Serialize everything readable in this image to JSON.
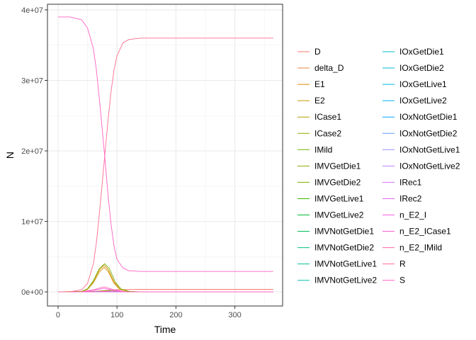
{
  "chart_data": {
    "type": "line",
    "xlabel": "Time",
    "ylabel": "N",
    "xlim": [
      -18,
      381
    ],
    "ylim": [
      -2000000,
      40800000
    ],
    "x_ticks": [
      0,
      100,
      200,
      300
    ],
    "x_tick_labels": [
      "0",
      "100",
      "200",
      "300"
    ],
    "y_ticks": [
      0,
      10000000,
      20000000,
      30000000,
      40000000
    ],
    "y_tick_labels": [
      "0e+00",
      "1e+07",
      "2e+07",
      "3e+07",
      "4e+07"
    ],
    "grid": true,
    "legend_position": "right",
    "legend_columns": 2,
    "series": [
      {
        "name": "D",
        "color": "#F8766D",
        "x": [
          0,
          60,
          80,
          100,
          140,
          365
        ],
        "y": [
          0,
          60000,
          200000,
          320000,
          360000,
          360000
        ]
      },
      {
        "name": "delta_D",
        "color": "#EE8042",
        "x": [
          0,
          50,
          70,
          80,
          90,
          110,
          365
        ],
        "y": [
          0,
          0,
          3000,
          5000,
          3000,
          0,
          0
        ]
      },
      {
        "name": "E1",
        "color": "#DF8B00",
        "x": [
          0,
          40,
          50,
          60,
          70,
          78,
          85,
          95,
          105,
          120,
          140,
          365
        ],
        "y": [
          0,
          60000,
          400000,
          1500000,
          3100000,
          3800000,
          3200000,
          1400000,
          400000,
          60000,
          0,
          0
        ]
      },
      {
        "name": "E2",
        "color": "#CB9600",
        "x": [
          0,
          40,
          50,
          60,
          70,
          78,
          85,
          95,
          105,
          120,
          140,
          365
        ],
        "y": [
          0,
          50000,
          350000,
          1300000,
          2800000,
          3500000,
          2900000,
          1200000,
          350000,
          50000,
          0,
          0
        ]
      },
      {
        "name": "ICase1",
        "color": "#B3A000",
        "x": [
          0,
          50,
          65,
          80,
          95,
          110,
          130,
          365
        ],
        "y": [
          0,
          20000,
          80000,
          180000,
          120000,
          40000,
          0,
          0
        ]
      },
      {
        "name": "ICase2",
        "color": "#96A900",
        "x": [
          0,
          50,
          65,
          82,
          97,
          112,
          132,
          365
        ],
        "y": [
          0,
          15000,
          60000,
          150000,
          100000,
          30000,
          0,
          0
        ]
      },
      {
        "name": "IMild",
        "color": "#6FB000",
        "x": [
          0,
          40,
          50,
          60,
          70,
          79,
          87,
          97,
          107,
          122,
          140,
          365
        ],
        "y": [
          0,
          70000,
          450000,
          1600000,
          3300000,
          4000000,
          3300000,
          1400000,
          400000,
          60000,
          0,
          0
        ]
      },
      {
        "name": "IMVGetDie1",
        "color": "#8AAB00",
        "x": [
          0,
          60,
          85,
          110,
          365
        ],
        "y": [
          0,
          5000,
          30000,
          5000,
          0
        ]
      },
      {
        "name": "IMVGetDie2",
        "color": "#7CAE00",
        "x": [
          0,
          60,
          87,
          112,
          365
        ],
        "y": [
          0,
          4000,
          25000,
          4000,
          0
        ]
      },
      {
        "name": "IMVGetLive1",
        "color": "#3DB700",
        "x": [
          0,
          60,
          85,
          110,
          365
        ],
        "y": [
          0,
          6000,
          35000,
          6000,
          0
        ]
      },
      {
        "name": "IMVGetLive2",
        "color": "#00BA38",
        "x": [
          0,
          60,
          87,
          112,
          365
        ],
        "y": [
          0,
          5000,
          28000,
          5000,
          0
        ]
      },
      {
        "name": "IMVNotGetDie1",
        "color": "#00BD5C",
        "x": [
          0,
          60,
          85,
          110,
          365
        ],
        "y": [
          0,
          2000,
          12000,
          2000,
          0
        ]
      },
      {
        "name": "IMVNotGetDie2",
        "color": "#00BF7A",
        "x": [
          0,
          60,
          87,
          112,
          365
        ],
        "y": [
          0,
          2000,
          10000,
          2000,
          0
        ]
      },
      {
        "name": "IMVNotGetLive1",
        "color": "#00C094",
        "x": [
          0,
          60,
          85,
          110,
          365
        ],
        "y": [
          0,
          1000,
          8000,
          1000,
          0
        ]
      },
      {
        "name": "IMVNotGetLive2",
        "color": "#00C0AB",
        "x": [
          0,
          60,
          87,
          112,
          365
        ],
        "y": [
          0,
          1000,
          6000,
          1000,
          0
        ]
      },
      {
        "name": "IOxGetDie1",
        "color": "#00BFC0",
        "x": [
          0,
          60,
          84,
          108,
          365
        ],
        "y": [
          0,
          8000,
          45000,
          8000,
          0
        ]
      },
      {
        "name": "IOxGetDie2",
        "color": "#00BCD8",
        "x": [
          0,
          60,
          86,
          110,
          365
        ],
        "y": [
          0,
          7000,
          40000,
          7000,
          0
        ]
      },
      {
        "name": "IOxGetLive1",
        "color": "#00B8E7",
        "x": [
          0,
          60,
          84,
          108,
          365
        ],
        "y": [
          0,
          15000,
          90000,
          15000,
          0
        ]
      },
      {
        "name": "IOxGetLive2",
        "color": "#00B0F6",
        "x": [
          0,
          60,
          86,
          110,
          365
        ],
        "y": [
          0,
          12000,
          75000,
          12000,
          0
        ]
      },
      {
        "name": "IOxNotGetDie1",
        "color": "#00A9FF",
        "x": [
          0,
          60,
          84,
          108,
          365
        ],
        "y": [
          0,
          2000,
          10000,
          2000,
          0
        ]
      },
      {
        "name": "IOxNotGetDie2",
        "color": "#619CFF",
        "x": [
          0,
          60,
          86,
          110,
          365
        ],
        "y": [
          0,
          2000,
          9000,
          2000,
          0
        ]
      },
      {
        "name": "IOxNotGetLive1",
        "color": "#9590FF",
        "x": [
          0,
          60,
          84,
          108,
          365
        ],
        "y": [
          0,
          3000,
          15000,
          3000,
          0
        ]
      },
      {
        "name": "IOxNotGetLive2",
        "color": "#B983FF",
        "x": [
          0,
          60,
          86,
          110,
          365
        ],
        "y": [
          0,
          2000,
          12000,
          2000,
          0
        ]
      },
      {
        "name": "IRec1",
        "color": "#D376FF",
        "x": [
          0,
          55,
          80,
          105,
          130,
          365
        ],
        "y": [
          0,
          5000,
          40000,
          15000,
          0,
          0
        ]
      },
      {
        "name": "IRec2",
        "color": "#E76BF3",
        "x": [
          0,
          55,
          82,
          107,
          132,
          365
        ],
        "y": [
          0,
          4000,
          35000,
          12000,
          0,
          0
        ]
      },
      {
        "name": "n_E2_I",
        "color": "#F564E3",
        "x": [
          0,
          40,
          60,
          78,
          95,
          115,
          140,
          365
        ],
        "y": [
          0,
          20000,
          200000,
          500000,
          200000,
          20000,
          0,
          0
        ]
      },
      {
        "name": "n_E2_ICase1",
        "color": "#FD61D1",
        "x": [
          0,
          50,
          70,
          80,
          92,
          110,
          365
        ],
        "y": [
          0,
          5000,
          40000,
          80000,
          40000,
          5000,
          0
        ]
      },
      {
        "name": "n_E2_IMild",
        "color": "#FF64B0",
        "x": [
          0,
          40,
          60,
          78,
          95,
          115,
          140,
          365
        ],
        "y": [
          0,
          30000,
          300000,
          700000,
          300000,
          30000,
          0,
          0
        ]
      },
      {
        "name": "R",
        "color": "#FF6C91",
        "x": [
          0,
          20,
          40,
          50,
          60,
          65,
          70,
          75,
          80,
          85,
          90,
          95,
          100,
          110,
          120,
          140,
          200,
          365
        ],
        "y": [
          0,
          10000,
          300000,
          1200000,
          4000000,
          7000000,
          11000000,
          15500000,
          20000000,
          24500000,
          28500000,
          31500000,
          33500000,
          35300000,
          35800000,
          36000000,
          36000000,
          36000000
        ]
      },
      {
        "name": "S",
        "color": "#FF61C3",
        "x": [
          0,
          20,
          40,
          50,
          60,
          65,
          70,
          75,
          80,
          85,
          90,
          95,
          100,
          110,
          120,
          140,
          200,
          365
        ],
        "y": [
          39000000,
          39000000,
          38600000,
          37400000,
          34500000,
          31500000,
          27500000,
          23000000,
          18500000,
          13500000,
          9500000,
          6500000,
          4600000,
          3400000,
          3000000,
          2900000,
          2900000,
          2900000
        ]
      }
    ]
  }
}
